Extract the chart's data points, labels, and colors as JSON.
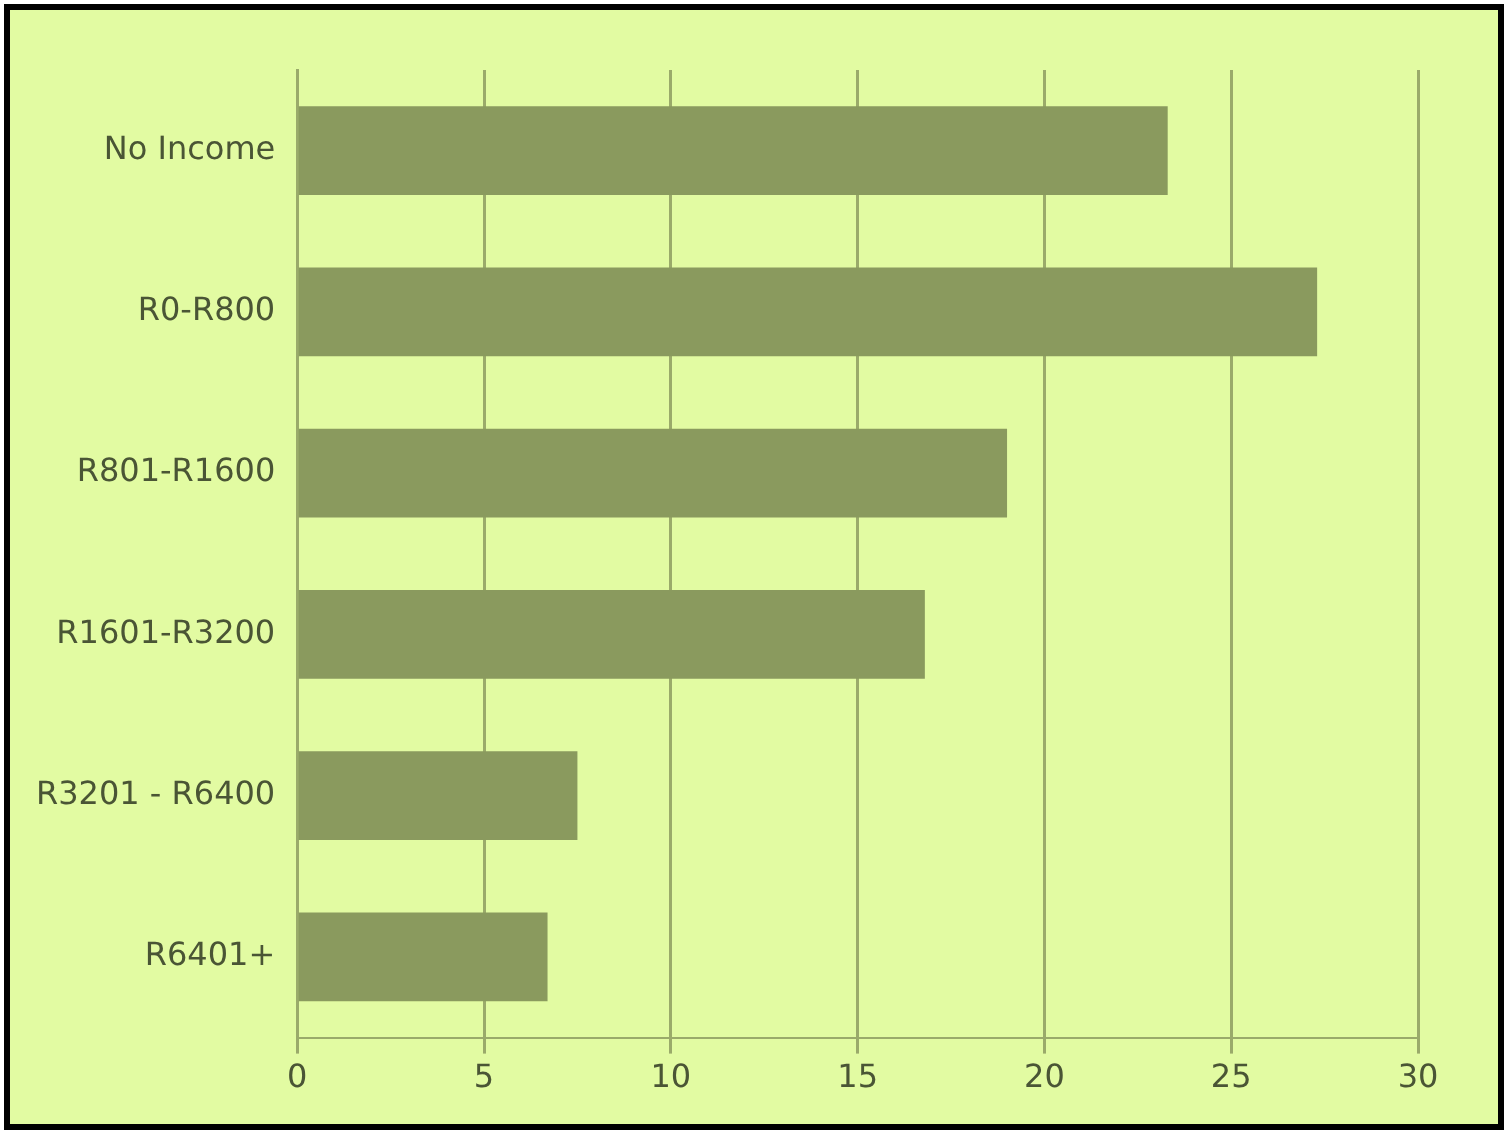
{
  "chart_data": {
    "type": "bar",
    "orientation": "horizontal",
    "categories": [
      "No Income",
      "R0-R800",
      "R801-R1600",
      "R1601-R3200",
      "R3201 - R6400",
      "R6401+"
    ],
    "values": [
      23.3,
      27.3,
      19.0,
      16.8,
      7.5,
      6.7
    ],
    "color": "#8a9a5e",
    "xlim": [
      0,
      30
    ],
    "xticks": [
      0,
      5,
      10,
      15,
      20,
      25,
      30
    ],
    "grid": "x"
  }
}
